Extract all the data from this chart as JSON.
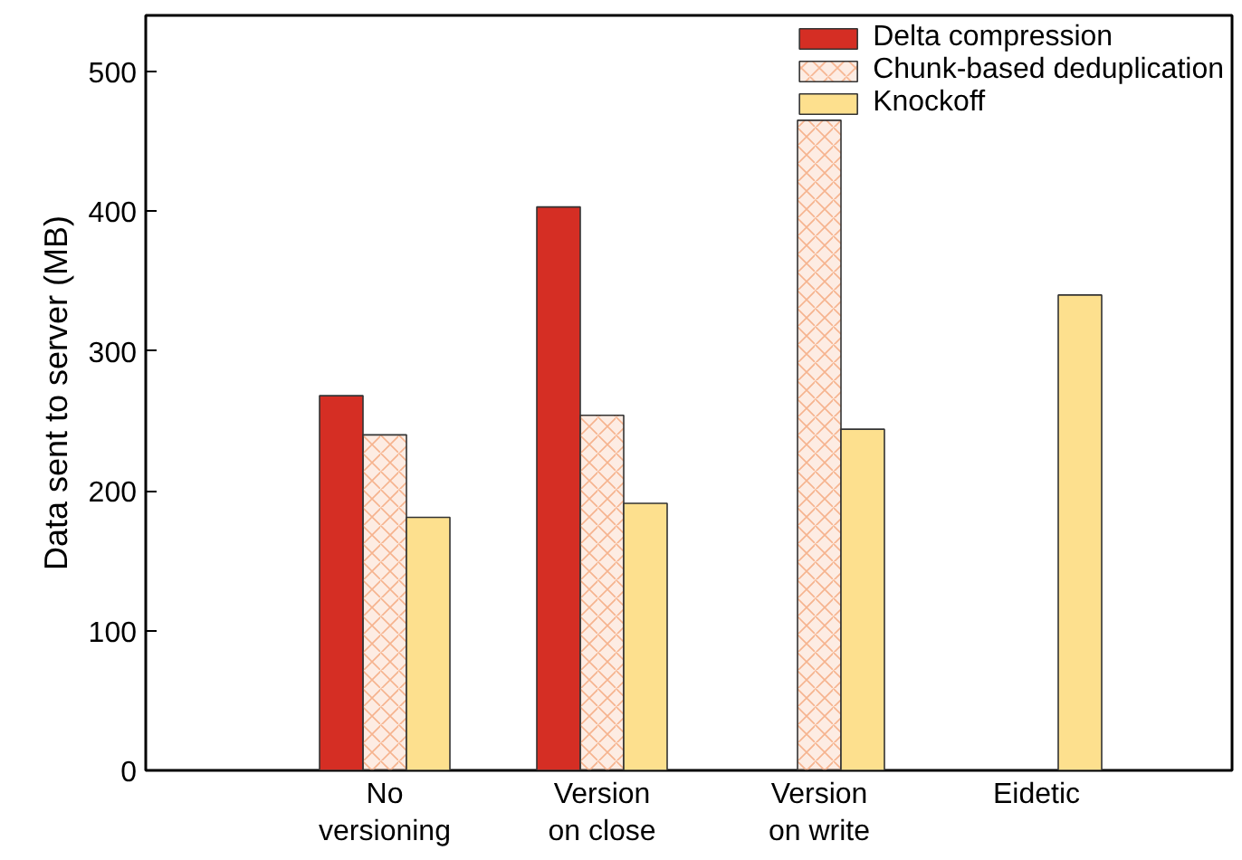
{
  "chart_data": {
    "type": "bar",
    "ylabel": "Data sent to server (MB)",
    "categories": [
      "No\nversioning",
      "Version\non close",
      "Version\non write",
      "Eidetic"
    ],
    "series": [
      {
        "name": "Delta compression",
        "color": "#d52e24",
        "values": [
          268,
          403,
          null,
          null
        ]
      },
      {
        "name": "Chunk-based deduplication",
        "color": "#f6b38e",
        "values": [
          240,
          254,
          465,
          null
        ]
      },
      {
        "name": "Knockoff",
        "color": "#fde08e",
        "values": [
          181,
          191,
          244,
          340
        ]
      }
    ],
    "ylim": [
      0,
      540
    ],
    "yticks": [
      0,
      100,
      200,
      300,
      400,
      500
    ],
    "grid": false,
    "legend": "top right"
  }
}
